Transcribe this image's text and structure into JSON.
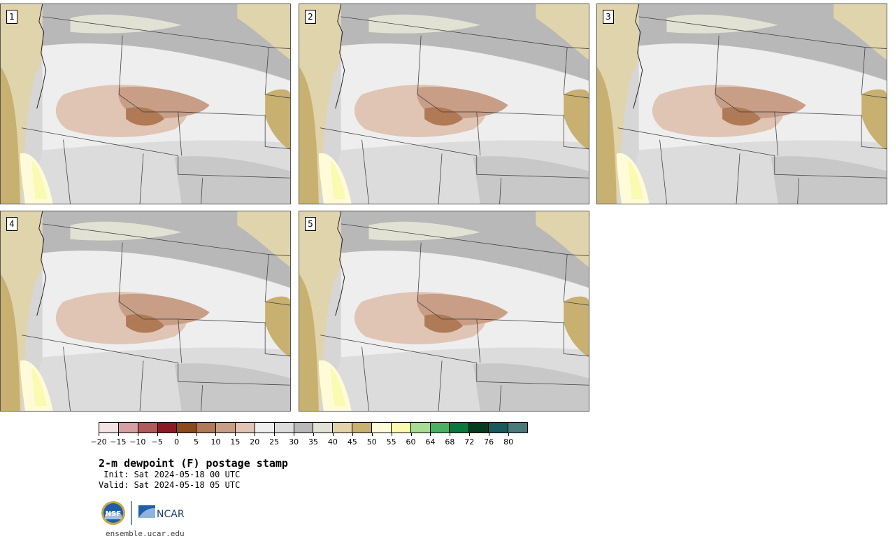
{
  "panels": [
    {
      "label": "1"
    },
    {
      "label": "2"
    },
    {
      "label": "3"
    },
    {
      "label": "4"
    },
    {
      "label": "5"
    }
  ],
  "colorbar": {
    "ticks": [
      "−20",
      "−15",
      "−10",
      "−5",
      "0",
      "5",
      "10",
      "15",
      "20",
      "25",
      "30",
      "35",
      "40",
      "45",
      "50",
      "55",
      "60",
      "64",
      "68",
      "72",
      "76",
      "80"
    ],
    "colors": [
      "#f2e4e4",
      "#d4a0a0",
      "#b05a5a",
      "#8c1a24",
      "#8a4a1a",
      "#b07a56",
      "#c89e86",
      "#e0c4b4",
      "#eeeeee",
      "#dcdcdc",
      "#b8b8b8",
      "#e2e2d4",
      "#e2d4a8",
      "#c8b070",
      "#fffbd8",
      "#fafab0",
      "#a8dc90",
      "#4cb064",
      "#08783c",
      "#043c20",
      "#1a5a5a",
      "#4a7a7a"
    ]
  },
  "title": "2-m dewpoint (F) postage stamp",
  "init": " Init: Sat 2024-05-18 00 UTC",
  "valid": "Valid: Sat 2024-05-18 05 UTC",
  "logos": {
    "nsf": "NSF",
    "ncar": "NCAR"
  },
  "url": "ensemble.ucar.edu"
}
